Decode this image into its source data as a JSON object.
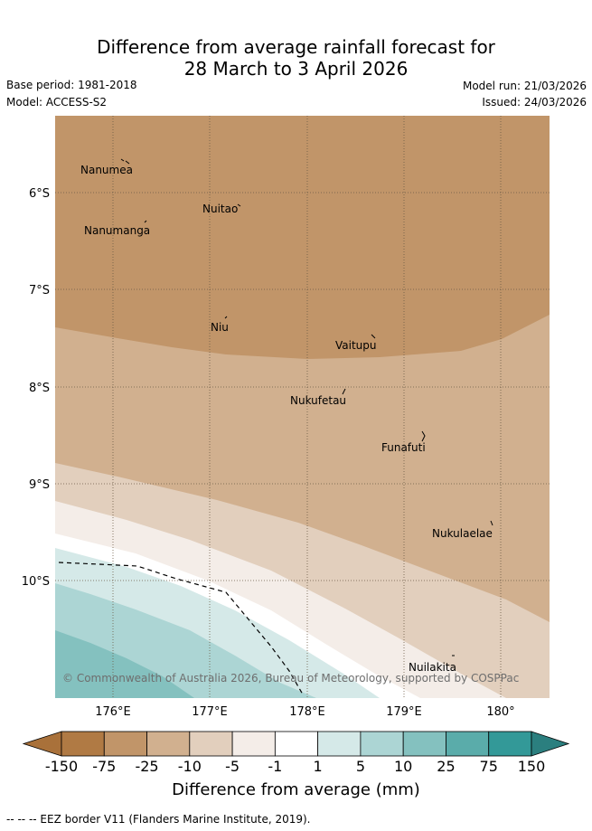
{
  "title": {
    "line1": "Difference from average rainfall forecast for",
    "line2": "28 March to 3 April 2026"
  },
  "meta": {
    "base_period": "Base period: 1981-2018",
    "model": "Model: ACCESS-S2",
    "model_run": "Model run: 21/03/2026",
    "issued": "Issued: 24/03/2026"
  },
  "axes": {
    "lat_labels": [
      "6°S",
      "7°S",
      "8°S",
      "9°S",
      "10°S"
    ],
    "lon_labels": [
      "176°E",
      "177°E",
      "178°E",
      "179°E",
      "180°"
    ]
  },
  "islands": [
    {
      "name": "Nanumea"
    },
    {
      "name": "Nuitao"
    },
    {
      "name": "Nanumanga"
    },
    {
      "name": "Niu"
    },
    {
      "name": "Vaitupu"
    },
    {
      "name": "Nukufetau"
    },
    {
      "name": "Funafuti"
    },
    {
      "name": "Nukulaelae"
    },
    {
      "name": "Nuilakita"
    }
  ],
  "copyright": "© Commonwealth of Australia 2026, Bureau of Meteorology, supported by COSPPac",
  "legend": {
    "ticks": [
      "-150",
      "-75",
      "-25",
      "-10",
      "-5",
      "-1",
      "1",
      "5",
      "10",
      "25",
      "75",
      "150"
    ],
    "colors": [
      "#a9713a",
      "#b07a44",
      "#c19569",
      "#d1b08f",
      "#e2cfbd",
      "#f4ede8",
      "#ffffff",
      "#d5e9e8",
      "#acd5d4",
      "#84c1bf",
      "#5aacaa",
      "#339998",
      "#2b7f7f"
    ],
    "label": "Difference from average (mm)"
  },
  "footer": "--  --  -- EEZ border V11 (Flanders Marine Institute, 2019)."
}
